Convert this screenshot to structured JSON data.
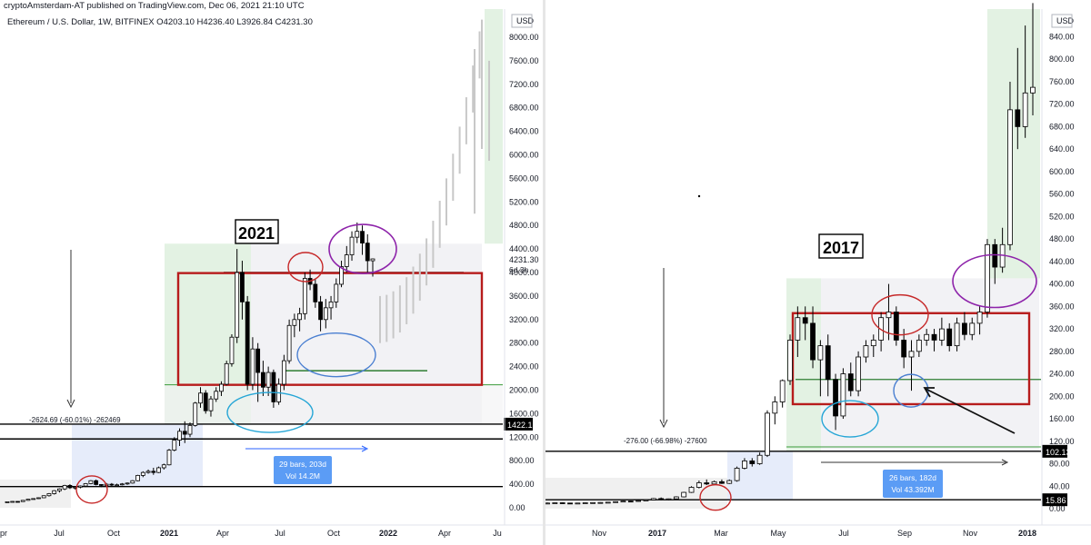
{
  "header": {
    "publisher": "cryptoAmsterdam-AT published on TradingView.com, Dec 06, 2021 21:10 UTC",
    "symbol": "Ethereum / U.S. Dollar, 1W, BITFINEX",
    "ohlc": "O4203.10  H4236.40  L3926.84  C4231.30"
  },
  "chart_data": [
    {
      "type": "candlestick",
      "title": "2021",
      "currency": "USD",
      "y_ticks": [
        "0.00",
        "400.00",
        "800.00",
        "1200.00",
        "1600.00",
        "2000.00",
        "2400.00",
        "2800.00",
        "3200.00",
        "3600.00",
        "4000.00",
        "4400.00",
        "4800.00",
        "5200.00",
        "5600.00",
        "6000.00",
        "6400.00",
        "6800.00",
        "7200.00",
        "7600.00",
        "8000.00"
      ],
      "ylim": [
        0,
        8300
      ],
      "x_ticks": [
        "pr",
        "Jul",
        "Oct",
        "2021",
        "Apr",
        "Jul",
        "Oct",
        "2022",
        "Apr",
        "Ju"
      ],
      "price_labels": {
        "last": "4231.30",
        "countdown": "6d 3h",
        "level": "1422.12"
      },
      "measure": "-2624.69 (-60.01%) -262469",
      "range_box": {
        "line1": "29 bars, 203d",
        "line2": "Vol 14.2M"
      },
      "levels": [
        4000,
        1422.12,
        1170,
        360,
        2330
      ],
      "box_range": [
        2090,
        3990
      ],
      "candles": [
        [
          100,
          104,
          96,
          102
        ],
        [
          102,
          112,
          99,
          108
        ],
        [
          108,
          110,
          100,
          105
        ],
        [
          105,
          130,
          102,
          126
        ],
        [
          126,
          150,
          120,
          145
        ],
        [
          145,
          160,
          140,
          156
        ],
        [
          156,
          175,
          150,
          170
        ],
        [
          170,
          210,
          165,
          205
        ],
        [
          205,
          250,
          190,
          240
        ],
        [
          240,
          300,
          225,
          290
        ],
        [
          290,
          330,
          260,
          320
        ],
        [
          320,
          390,
          300,
          380
        ],
        [
          380,
          400,
          320,
          340
        ],
        [
          340,
          360,
          310,
          350
        ],
        [
          350,
          380,
          330,
          370
        ],
        [
          370,
          420,
          350,
          410
        ],
        [
          410,
          470,
          400,
          460
        ],
        [
          460,
          480,
          380,
          395
        ],
        [
          395,
          400,
          350,
          380
        ],
        [
          380,
          420,
          370,
          400
        ],
        [
          400,
          420,
          370,
          385
        ],
        [
          385,
          410,
          360,
          390
        ],
        [
          390,
          420,
          380,
          405
        ],
        [
          405,
          430,
          390,
          420
        ],
        [
          420,
          470,
          410,
          460
        ],
        [
          460,
          560,
          450,
          550
        ],
        [
          550,
          620,
          520,
          600
        ],
        [
          600,
          650,
          580,
          620
        ],
        [
          620,
          680,
          560,
          600
        ],
        [
          600,
          700,
          590,
          680
        ],
        [
          680,
          750,
          650,
          730
        ],
        [
          730,
          1000,
          720,
          980
        ],
        [
          980,
          1200,
          960,
          1150
        ],
        [
          1150,
          1350,
          1050,
          1300
        ],
        [
          1300,
          1470,
          1100,
          1250
        ],
        [
          1250,
          1450,
          1200,
          1400
        ],
        [
          1400,
          1800,
          1380,
          1780
        ],
        [
          1780,
          2050,
          1700,
          1950
        ],
        [
          1950,
          2000,
          1600,
          1650
        ],
        [
          1650,
          1900,
          1550,
          1850
        ],
        [
          1850,
          2050,
          1800,
          1980
        ],
        [
          1980,
          2150,
          1900,
          2100
        ],
        [
          2100,
          2500,
          2080,
          2450
        ],
        [
          2450,
          2950,
          2400,
          2900
        ],
        [
          2900,
          4400,
          2800,
          4000
        ],
        [
          4000,
          4200,
          3200,
          3500
        ],
        [
          3500,
          3600,
          2000,
          2100
        ],
        [
          2100,
          2900,
          2000,
          2700
        ],
        [
          2700,
          2800,
          1800,
          2300
        ],
        [
          2300,
          2500,
          1900,
          2050
        ],
        [
          2050,
          2400,
          1900,
          2300
        ],
        [
          2300,
          2350,
          1700,
          1800
        ],
        [
          1800,
          2200,
          1750,
          2100
        ],
        [
          2100,
          2600,
          2000,
          2500
        ],
        [
          2500,
          3200,
          2450,
          3100
        ],
        [
          3100,
          3300,
          2900,
          3200
        ],
        [
          3200,
          3400,
          3000,
          3300
        ],
        [
          3300,
          4000,
          3200,
          3900
        ],
        [
          3900,
          4050,
          3700,
          3800
        ],
        [
          3800,
          3900,
          3400,
          3500
        ],
        [
          3500,
          3600,
          3000,
          3200
        ],
        [
          3200,
          3550,
          3050,
          3400
        ],
        [
          3400,
          3600,
          3200,
          3500
        ],
        [
          3500,
          3900,
          3400,
          3800
        ],
        [
          3800,
          4200,
          3750,
          4100
        ],
        [
          4100,
          4450,
          4000,
          4300
        ],
        [
          4300,
          4700,
          4200,
          4600
        ],
        [
          4600,
          4850,
          4500,
          4700
        ],
        [
          4700,
          4800,
          4300,
          4500
        ],
        [
          4500,
          4650,
          4000,
          4200
        ],
        [
          4200,
          4240,
          3930,
          4231
        ]
      ]
    },
    {
      "type": "candlestick",
      "title": "2017",
      "currency": "USD",
      "y_ticks": [
        "0.00",
        "40.00",
        "80.00",
        "120.00",
        "160.00",
        "200.00",
        "240.00",
        "280.00",
        "320.00",
        "360.00",
        "400.00",
        "440.00",
        "480.00",
        "520.00",
        "560.00",
        "600.00",
        "640.00",
        "680.00",
        "720.00",
        "760.00",
        "800.00",
        "840.00"
      ],
      "ylim": [
        0,
        860
      ],
      "x_ticks": [
        "Nov",
        "2017",
        "Mar",
        "May",
        "Jul",
        "Sep",
        "Nov",
        "2018"
      ],
      "price_labels": {
        "level": "102.13",
        "low": "15.86"
      },
      "measure": "-276.00 (-66.98%) -27600",
      "range_box": {
        "line1": "26 bars, 182d",
        "line2": "Vol 43.392M"
      },
      "levels": [
        348,
        102.13,
        15.86,
        230
      ],
      "box_range": [
        186,
        348
      ],
      "candles": [
        [
          10,
          11,
          9,
          10
        ],
        [
          10,
          11,
          9,
          10.5
        ],
        [
          10.5,
          11,
          9.5,
          10
        ],
        [
          10,
          10.5,
          9,
          9.5
        ],
        [
          9.5,
          10.5,
          9,
          10
        ],
        [
          10,
          11,
          9.5,
          10.5
        ],
        [
          10.5,
          11,
          10,
          10.8
        ],
        [
          10.8,
          11.5,
          10.5,
          11
        ],
        [
          11,
          12,
          10.5,
          11.5
        ],
        [
          11.5,
          13,
          11,
          12.5
        ],
        [
          12.5,
          14,
          12,
          13.5
        ],
        [
          13.5,
          14,
          12,
          13
        ],
        [
          13,
          15,
          12.5,
          14.5
        ],
        [
          14.5,
          16,
          14,
          15.5
        ],
        [
          15.5,
          19,
          15,
          18
        ],
        [
          18,
          20,
          15,
          16
        ],
        [
          16,
          18,
          15,
          17.5
        ],
        [
          17.5,
          22,
          17,
          21
        ],
        [
          21,
          30,
          20,
          29
        ],
        [
          29,
          40,
          28,
          38
        ],
        [
          38,
          50,
          36,
          46
        ],
        [
          46,
          52,
          42,
          44
        ],
        [
          44,
          50,
          42,
          48
        ],
        [
          48,
          52,
          44,
          45
        ],
        [
          45,
          52,
          44,
          50
        ],
        [
          50,
          75,
          48,
          72
        ],
        [
          72,
          90,
          70,
          85
        ],
        [
          85,
          90,
          75,
          80
        ],
        [
          80,
          100,
          78,
          95
        ],
        [
          95,
          175,
          92,
          170
        ],
        [
          170,
          200,
          150,
          190
        ],
        [
          190,
          230,
          180,
          228
        ],
        [
          228,
          310,
          220,
          300
        ],
        [
          300,
          360,
          270,
          340
        ],
        [
          340,
          360,
          300,
          330
        ],
        [
          330,
          360,
          250,
          265
        ],
        [
          265,
          300,
          200,
          290
        ],
        [
          290,
          310,
          200,
          230
        ],
        [
          230,
          240,
          140,
          165
        ],
        [
          165,
          250,
          160,
          240
        ],
        [
          240,
          260,
          200,
          210
        ],
        [
          210,
          280,
          200,
          270
        ],
        [
          270,
          300,
          260,
          290
        ],
        [
          290,
          310,
          270,
          300
        ],
        [
          300,
          350,
          280,
          340
        ],
        [
          340,
          400,
          300,
          350
        ],
        [
          350,
          360,
          290,
          300
        ],
        [
          300,
          320,
          250,
          270
        ],
        [
          270,
          300,
          210,
          280
        ],
        [
          280,
          310,
          270,
          300
        ],
        [
          300,
          320,
          290,
          310
        ],
        [
          310,
          320,
          280,
          300
        ],
        [
          300,
          340,
          290,
          320
        ],
        [
          320,
          330,
          280,
          290
        ],
        [
          290,
          340,
          280,
          330
        ],
        [
          330,
          350,
          300,
          310
        ],
        [
          310,
          340,
          300,
          330
        ],
        [
          330,
          360,
          310,
          350
        ],
        [
          350,
          480,
          340,
          470
        ],
        [
          470,
          480,
          400,
          430
        ],
        [
          430,
          500,
          420,
          470
        ],
        [
          470,
          760,
          460,
          710
        ],
        [
          710,
          820,
          640,
          680
        ],
        [
          680,
          860,
          660,
          740
        ],
        [
          740,
          900,
          700,
          750
        ]
      ]
    }
  ]
}
